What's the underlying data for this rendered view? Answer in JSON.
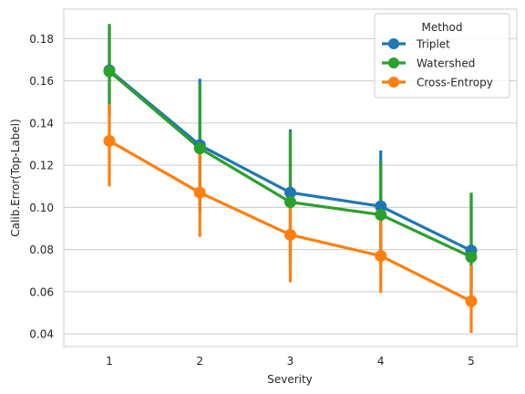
{
  "chart_data": {
    "type": "line",
    "title": "",
    "xlabel": "Severity",
    "ylabel": "Calib.Error(Top-Label)",
    "categories": [
      "1",
      "2",
      "3",
      "4",
      "5"
    ],
    "ylim": [
      0.034,
      0.194
    ],
    "yticks": [
      0.04,
      0.06,
      0.08,
      0.1,
      0.12,
      0.14,
      0.16,
      0.18
    ],
    "ytick_labels": [
      "0.04",
      "0.06",
      "0.08",
      "0.10",
      "0.12",
      "0.14",
      "0.16",
      "0.18"
    ],
    "grid": true,
    "legend": {
      "title": "Method",
      "placement": "top-right"
    },
    "series": [
      {
        "name": "Triplet",
        "color": "#1f77b4",
        "values": [
          0.165,
          0.1295,
          0.107,
          0.1005,
          0.0795
        ],
        "err_low": [
          0.143,
          0.098,
          0.077,
          0.076,
          0.055
        ],
        "err_high": [
          0.186,
          0.161,
          0.137,
          0.127,
          0.106
        ]
      },
      {
        "name": "Watershed",
        "color": "#2ca02c",
        "values": [
          0.1645,
          0.128,
          0.1025,
          0.0965,
          0.0765
        ],
        "err_low": [
          0.143,
          0.097,
          0.073,
          0.073,
          0.052
        ],
        "err_high": [
          0.187,
          0.159,
          0.136,
          0.122,
          0.107
        ]
      },
      {
        "name": "Cross-Entropy",
        "color": "#ff7f0e",
        "values": [
          0.1315,
          0.107,
          0.087,
          0.077,
          0.0555
        ],
        "err_low": [
          0.11,
          0.086,
          0.0645,
          0.0595,
          0.0405
        ],
        "err_high": [
          0.149,
          0.129,
          0.108,
          0.097,
          0.0725
        ]
      }
    ]
  }
}
